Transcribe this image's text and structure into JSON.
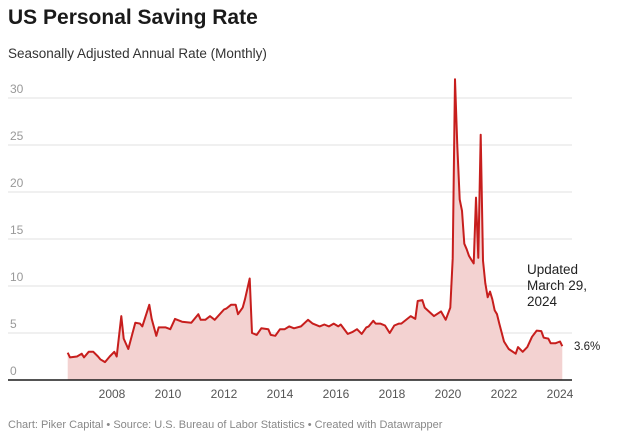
{
  "title": "US Personal Saving Rate",
  "subtitle": "Seasonally Adjusted Annual Rate (Monthly)",
  "footer": "Chart: Piker Capital • Source: U.S. Bureau of Labor Statistics • Created with Datawrapper",
  "annotation": "Updated March 29, 2024",
  "end_label": "3.6%",
  "colors": {
    "line": "#c71e1d",
    "fill": "#f3d2d1",
    "grid": "#e0e0e0",
    "axis": "#1a1a1a"
  },
  "chart_data": {
    "type": "area",
    "title": "US Personal Saving Rate",
    "subtitle": "Seasonally Adjusted Annual Rate (Monthly)",
    "xlabel": "",
    "ylabel": "",
    "ylim": [
      0,
      30
    ],
    "xlim": [
      "2006-06",
      "2024-02"
    ],
    "y_ticks": [
      "0",
      "5",
      "10",
      "15",
      "20",
      "25",
      "30"
    ],
    "x_ticks": [
      "2008",
      "2010",
      "2012",
      "2014",
      "2016",
      "2018",
      "2020",
      "2022",
      "2024"
    ],
    "grid": "horizontal",
    "points": [
      [
        "2006-06",
        2.9
      ],
      [
        "2006-07",
        2.4
      ],
      [
        "2006-10",
        2.5
      ],
      [
        "2006-12",
        2.8
      ],
      [
        "2007-01",
        2.4
      ],
      [
        "2007-03",
        3.0
      ],
      [
        "2007-05",
        3.0
      ],
      [
        "2007-07",
        2.5
      ],
      [
        "2007-08",
        2.2
      ],
      [
        "2007-10",
        1.9
      ],
      [
        "2007-12",
        2.5
      ],
      [
        "2008-02",
        3.0
      ],
      [
        "2008-03",
        2.5
      ],
      [
        "2008-05",
        6.8
      ],
      [
        "2008-06",
        4.4
      ],
      [
        "2008-08",
        3.3
      ],
      [
        "2008-11",
        6.1
      ],
      [
        "2009-01",
        6.0
      ],
      [
        "2009-02",
        5.7
      ],
      [
        "2009-05",
        8.0
      ],
      [
        "2009-06",
        6.5
      ],
      [
        "2009-08",
        4.7
      ],
      [
        "2009-09",
        5.6
      ],
      [
        "2009-12",
        5.6
      ],
      [
        "2010-02",
        5.4
      ],
      [
        "2010-04",
        6.5
      ],
      [
        "2010-07",
        6.2
      ],
      [
        "2010-11",
        6.1
      ],
      [
        "2011-02",
        7.0
      ],
      [
        "2011-03",
        6.4
      ],
      [
        "2011-05",
        6.4
      ],
      [
        "2011-07",
        6.8
      ],
      [
        "2011-09",
        6.4
      ],
      [
        "2012-01",
        7.5
      ],
      [
        "2012-02",
        7.6
      ],
      [
        "2012-04",
        8.0
      ],
      [
        "2012-06",
        8.0
      ],
      [
        "2012-07",
        7.0
      ],
      [
        "2012-09",
        7.7
      ],
      [
        "2012-10",
        8.6
      ],
      [
        "2012-12",
        10.8
      ],
      [
        "2013-01",
        5.0
      ],
      [
        "2013-03",
        4.8
      ],
      [
        "2013-05",
        5.5
      ],
      [
        "2013-08",
        5.4
      ],
      [
        "2013-09",
        4.8
      ],
      [
        "2013-11",
        4.7
      ],
      [
        "2014-01",
        5.4
      ],
      [
        "2014-03",
        5.4
      ],
      [
        "2014-05",
        5.7
      ],
      [
        "2014-07",
        5.5
      ],
      [
        "2014-10",
        5.7
      ],
      [
        "2015-01",
        6.4
      ],
      [
        "2015-03",
        6.0
      ],
      [
        "2015-06",
        5.7
      ],
      [
        "2015-08",
        5.9
      ],
      [
        "2015-10",
        5.7
      ],
      [
        "2015-12",
        6.0
      ],
      [
        "2016-02",
        5.7
      ],
      [
        "2016-03",
        5.9
      ],
      [
        "2016-06",
        4.9
      ],
      [
        "2016-08",
        5.1
      ],
      [
        "2016-10",
        5.4
      ],
      [
        "2016-12",
        4.9
      ],
      [
        "2017-02",
        5.6
      ],
      [
        "2017-03",
        5.7
      ],
      [
        "2017-05",
        6.3
      ],
      [
        "2017-06",
        6.0
      ],
      [
        "2017-08",
        6.0
      ],
      [
        "2017-10",
        5.8
      ],
      [
        "2017-12",
        5.0
      ],
      [
        "2018-02",
        5.8
      ],
      [
        "2018-04",
        6.0
      ],
      [
        "2018-05",
        6.0
      ],
      [
        "2018-09",
        6.8
      ],
      [
        "2018-11",
        6.5
      ],
      [
        "2018-12",
        8.4
      ],
      [
        "2019-02",
        8.5
      ],
      [
        "2019-03",
        7.7
      ],
      [
        "2019-07",
        6.8
      ],
      [
        "2019-10",
        7.3
      ],
      [
        "2019-12",
        6.4
      ],
      [
        "2020-02",
        7.7
      ],
      [
        "2020-03",
        12.9
      ],
      [
        "2020-04",
        32.0
      ],
      [
        "2020-05",
        24.9
      ],
      [
        "2020-06",
        19.2
      ],
      [
        "2020-07",
        18.0
      ],
      [
        "2020-08",
        14.5
      ],
      [
        "2020-09",
        13.9
      ],
      [
        "2020-10",
        13.2
      ],
      [
        "2020-11",
        12.8
      ],
      [
        "2020-12",
        12.4
      ],
      [
        "2021-01",
        19.4
      ],
      [
        "2021-02",
        13.0
      ],
      [
        "2021-03",
        26.1
      ],
      [
        "2021-04",
        12.7
      ],
      [
        "2021-05",
        10.3
      ],
      [
        "2021-06",
        8.8
      ],
      [
        "2021-07",
        9.4
      ],
      [
        "2021-08",
        8.6
      ],
      [
        "2021-09",
        7.4
      ],
      [
        "2021-10",
        7.0
      ],
      [
        "2021-11",
        6.0
      ],
      [
        "2022-01",
        4.1
      ],
      [
        "2022-03",
        3.3
      ],
      [
        "2022-06",
        2.8
      ],
      [
        "2022-07",
        3.5
      ],
      [
        "2022-09",
        3.0
      ],
      [
        "2022-11",
        3.5
      ],
      [
        "2023-01",
        4.6
      ],
      [
        "2023-03",
        5.25
      ],
      [
        "2023-05",
        5.2
      ],
      [
        "2023-06",
        4.5
      ],
      [
        "2023-08",
        4.4
      ],
      [
        "2023-09",
        3.9
      ],
      [
        "2023-11",
        3.9
      ],
      [
        "2024-01",
        4.1
      ],
      [
        "2024-02",
        3.6
      ]
    ]
  }
}
